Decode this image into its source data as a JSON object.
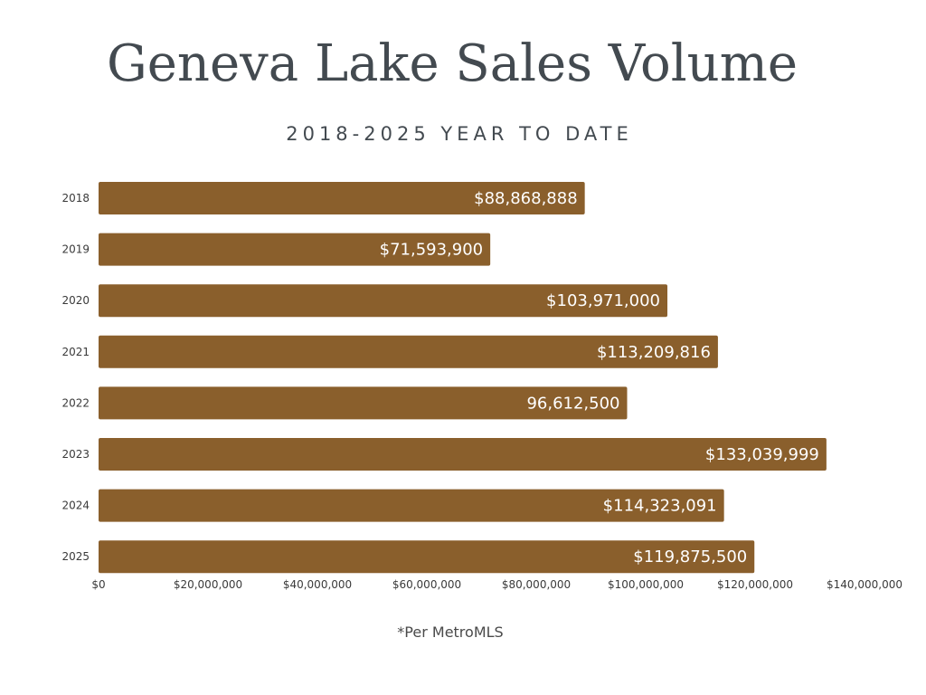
{
  "header": {
    "title": "Geneva Lake Sales Volume",
    "subtitle": "2018-2025 YEAR TO DATE"
  },
  "footer": {
    "note": "*Per MetroMLS"
  },
  "colors": {
    "bar": "#8a5f2c",
    "title": "#434a50",
    "background": "#ffffff"
  },
  "chart_data": {
    "type": "bar",
    "orientation": "horizontal",
    "title": "Geneva Lake Sales Volume",
    "subtitle": "2018-2025 YEAR TO DATE",
    "xlabel": "",
    "ylabel": "",
    "categories": [
      "2018",
      "2019",
      "2020",
      "2021",
      "2022",
      "2023",
      "2024",
      "2025"
    ],
    "values": [
      88868888,
      71593900,
      103971000,
      113209816,
      96612500,
      133039999,
      114323091,
      119875500
    ],
    "data_labels": [
      "$88,868,888",
      "$71,593,900",
      "$103,971,000",
      "$113,209,816",
      "96,612,500",
      "$133,039,999",
      "$114,323,091",
      "$119,875,500"
    ],
    "xlim": [
      0,
      140000000
    ],
    "x_ticks": [
      0,
      20000000,
      40000000,
      60000000,
      80000000,
      100000000,
      120000000,
      140000000
    ],
    "x_tick_labels": [
      "$0",
      "$20,000,000",
      "$40,000,000",
      "$60,000,000",
      "$80,000,000",
      "$100,000,000",
      "$120,000,000",
      "$140,000,000"
    ],
    "grid": false,
    "legend": "none"
  }
}
